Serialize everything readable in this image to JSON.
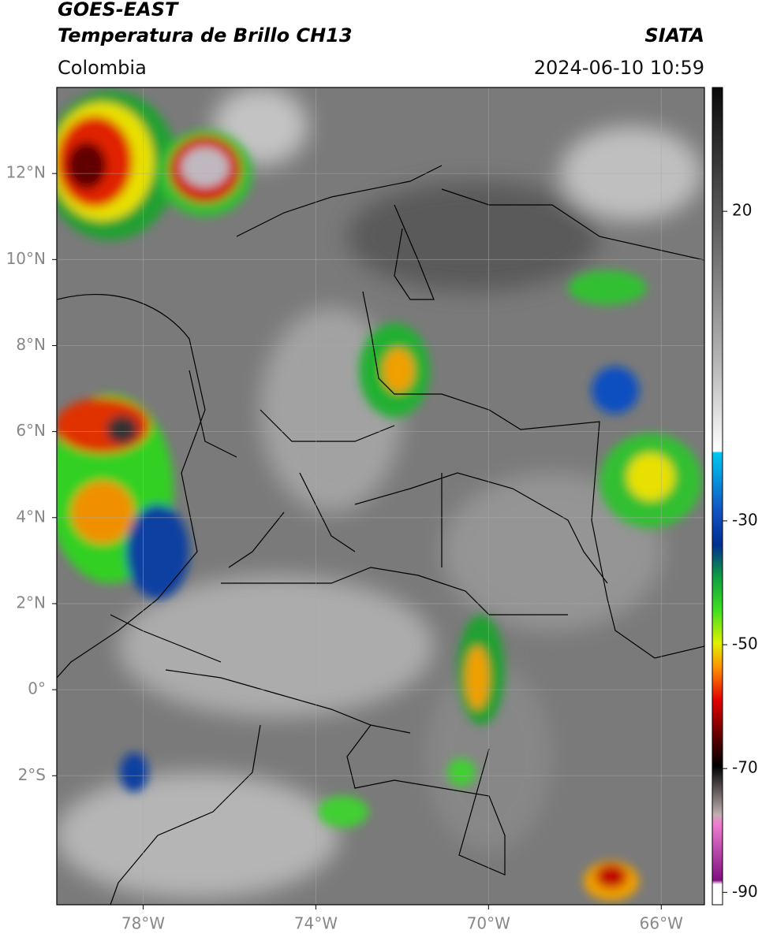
{
  "header": {
    "title": "GOES-EAST",
    "subtitle": "Temperatura de Brillo CH13",
    "source": "SIATA",
    "region": "Colombia",
    "timestamp": "2024-06-10 10:59"
  },
  "map": {
    "lonlim": [
      -80,
      -65
    ],
    "latlim": [
      -5,
      14
    ],
    "lonticks": [
      {
        "value": -78,
        "label": "78°W"
      },
      {
        "value": -74,
        "label": "74°W"
      },
      {
        "value": -70,
        "label": "70°W"
      },
      {
        "value": -66,
        "label": "66°W"
      }
    ],
    "latticks": [
      {
        "value": 12,
        "label": "12°N"
      },
      {
        "value": 10,
        "label": "10°N"
      },
      {
        "value": 8,
        "label": "8°N"
      },
      {
        "value": 6,
        "label": "6°N"
      },
      {
        "value": 4,
        "label": "4°N"
      },
      {
        "value": 2,
        "label": "2°N"
      },
      {
        "value": 0,
        "label": "0°"
      },
      {
        "value": -2,
        "label": "2°S"
      }
    ]
  },
  "colorbar": {
    "clim": [
      -92,
      40
    ],
    "ticks": [
      20,
      -30,
      -50,
      -70,
      -90
    ]
  }
}
